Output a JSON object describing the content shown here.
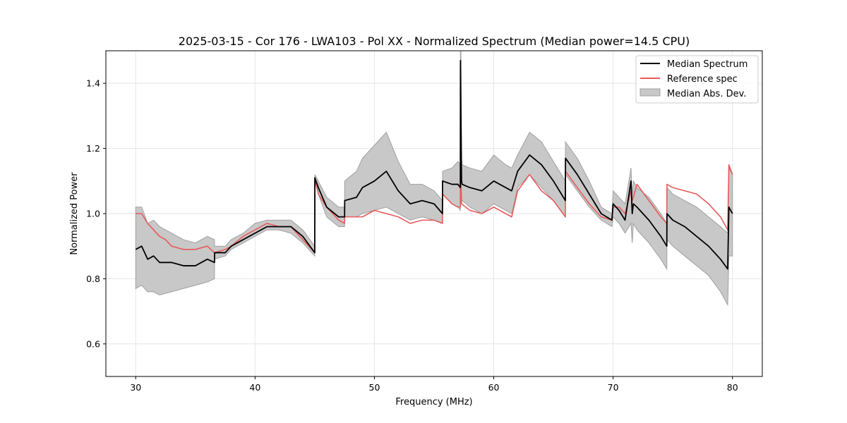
{
  "chart_data": {
    "type": "line",
    "title": "2025-03-15 - Cor 176 - LWA103 - Pol XX - Normalized Spectrum (Median power=14.5 CPU)",
    "xlabel": "Frequency (MHz)",
    "ylabel": "Normalized Power",
    "xlim": [
      27.5,
      82.5
    ],
    "ylim": [
      0.5,
      1.5
    ],
    "xticks": [
      30,
      40,
      50,
      60,
      70,
      80
    ],
    "yticks": [
      0.6,
      0.8,
      1.0,
      1.2,
      1.4
    ],
    "grid": true,
    "legend_position": "top-right",
    "legend": [
      "Median Spectrum",
      "Reference spec",
      "Median Abs. Dev."
    ],
    "colors": {
      "median": "#000000",
      "reference": "#e85a5a",
      "band_fill": "#c8c8c8",
      "band_edge": "#a0a0a0",
      "grid": "#e6e6e6"
    },
    "series": [
      {
        "name": "Median Spectrum",
        "x": [
          30.0,
          30.5,
          31.0,
          31.5,
          32.0,
          33.0,
          34.0,
          35.0,
          36.0,
          36.6,
          36.61,
          37.5,
          38.0,
          39.0,
          40.0,
          41.0,
          42.0,
          43.0,
          44.0,
          45.0,
          45.01,
          45.3,
          46.0,
          47.0,
          47.5,
          47.51,
          48.5,
          49.0,
          50.0,
          51.0,
          52.0,
          53.0,
          54.0,
          55.0,
          55.7,
          55.71,
          56.5,
          57.0,
          57.2,
          57.21,
          57.25,
          57.3,
          57.35,
          58.0,
          59.0,
          60.0,
          61.0,
          61.5,
          62.0,
          63.0,
          64.0,
          65.0,
          66.0,
          66.01,
          67.0,
          68.0,
          69.0,
          69.9,
          70.0,
          70.5,
          71.0,
          71.5,
          71.6,
          71.7,
          72.0,
          73.0,
          74.0,
          74.5,
          74.51,
          75.0,
          76.0,
          77.0,
          78.0,
          79.0,
          79.6,
          79.7,
          80.0
        ],
        "values": [
          0.89,
          0.9,
          0.86,
          0.87,
          0.85,
          0.85,
          0.84,
          0.84,
          0.86,
          0.85,
          0.88,
          0.88,
          0.9,
          0.92,
          0.94,
          0.96,
          0.96,
          0.96,
          0.93,
          0.88,
          1.11,
          1.08,
          1.02,
          0.99,
          0.99,
          1.04,
          1.05,
          1.08,
          1.1,
          1.13,
          1.07,
          1.03,
          1.04,
          1.03,
          1.0,
          1.1,
          1.09,
          1.09,
          1.08,
          1.47,
          1.3,
          1.1,
          1.09,
          1.08,
          1.07,
          1.1,
          1.08,
          1.07,
          1.13,
          1.18,
          1.15,
          1.1,
          1.04,
          1.17,
          1.12,
          1.06,
          1.0,
          0.98,
          1.03,
          1.01,
          0.98,
          1.1,
          1.0,
          1.03,
          1.02,
          0.98,
          0.93,
          0.9,
          1.0,
          0.98,
          0.96,
          0.93,
          0.9,
          0.86,
          0.83,
          1.02,
          1.0
        ]
      },
      {
        "name": "Reference spec",
        "x": [
          30.0,
          30.5,
          31.0,
          31.5,
          32.0,
          32.5,
          33.0,
          34.0,
          35.0,
          36.0,
          36.6,
          36.61,
          37.5,
          38.0,
          39.0,
          40.0,
          41.0,
          42.0,
          43.0,
          44.0,
          45.0,
          45.01,
          45.3,
          46.0,
          47.0,
          47.5,
          47.51,
          48.5,
          49.0,
          50.0,
          51.0,
          52.0,
          53.0,
          54.0,
          55.0,
          55.7,
          55.71,
          56.5,
          57.0,
          57.2,
          57.21,
          57.25,
          57.3,
          58.0,
          59.0,
          60.0,
          61.0,
          61.5,
          62.0,
          63.0,
          64.0,
          65.0,
          66.0,
          66.01,
          67.0,
          68.0,
          69.0,
          69.9,
          70.0,
          70.5,
          71.0,
          71.5,
          71.6,
          71.7,
          72.0,
          73.0,
          74.0,
          74.5,
          74.51,
          75.0,
          76.0,
          77.0,
          78.0,
          79.0,
          79.6,
          79.7,
          80.0
        ],
        "values": [
          1.0,
          1.0,
          0.97,
          0.95,
          0.93,
          0.92,
          0.9,
          0.89,
          0.89,
          0.9,
          0.88,
          0.88,
          0.89,
          0.9,
          0.93,
          0.95,
          0.97,
          0.96,
          0.96,
          0.92,
          0.88,
          1.11,
          1.06,
          1.02,
          0.98,
          0.97,
          0.99,
          0.99,
          0.99,
          1.01,
          1.0,
          0.99,
          0.97,
          0.98,
          0.98,
          0.97,
          1.06,
          1.03,
          1.02,
          1.02,
          1.22,
          1.1,
          1.03,
          1.01,
          1.0,
          1.02,
          1.0,
          0.99,
          1.07,
          1.12,
          1.07,
          1.04,
          0.99,
          1.13,
          1.08,
          1.03,
          0.99,
          0.98,
          1.02,
          1.02,
          1.0,
          1.07,
          1.04,
          1.05,
          1.09,
          1.04,
          0.99,
          0.97,
          1.09,
          1.08,
          1.07,
          1.06,
          1.03,
          0.99,
          0.95,
          1.15,
          1.12
        ]
      },
      {
        "name": "Median Abs. Dev.",
        "x": [
          30.0,
          30.5,
          31.0,
          31.5,
          32.0,
          33.0,
          34.0,
          35.0,
          36.0,
          36.6,
          36.61,
          37.5,
          38.0,
          39.0,
          40.0,
          41.0,
          42.0,
          43.0,
          44.0,
          45.0,
          45.01,
          45.3,
          46.0,
          47.0,
          47.5,
          47.51,
          48.5,
          49.0,
          50.0,
          51.0,
          52.0,
          53.0,
          54.0,
          55.0,
          55.7,
          55.71,
          56.5,
          57.0,
          57.2,
          57.21,
          57.25,
          57.3,
          57.35,
          58.0,
          59.0,
          60.0,
          61.0,
          61.5,
          62.0,
          63.0,
          64.0,
          65.0,
          66.0,
          66.01,
          67.0,
          68.0,
          69.0,
          69.9,
          70.0,
          70.5,
          71.0,
          71.5,
          71.6,
          71.7,
          72.0,
          73.0,
          74.0,
          74.5,
          74.51,
          75.0,
          76.0,
          77.0,
          78.0,
          79.0,
          79.6,
          79.7,
          80.0
        ],
        "lower": [
          0.77,
          0.78,
          0.76,
          0.76,
          0.75,
          0.76,
          0.77,
          0.78,
          0.79,
          0.8,
          0.86,
          0.87,
          0.89,
          0.91,
          0.93,
          0.95,
          0.95,
          0.94,
          0.91,
          0.87,
          1.1,
          1.06,
          0.99,
          0.96,
          0.96,
          0.99,
          0.99,
          1.0,
          1.01,
          1.02,
          1.0,
          0.98,
          0.99,
          0.98,
          0.97,
          1.06,
          1.03,
          1.02,
          1.01,
          1.1,
          1.1,
          1.04,
          1.04,
          1.02,
          1.0,
          1.03,
          1.01,
          1.0,
          1.08,
          1.12,
          1.08,
          1.04,
          0.99,
          1.12,
          1.07,
          1.02,
          0.98,
          0.96,
          0.99,
          0.97,
          0.94,
          0.97,
          0.91,
          0.97,
          0.95,
          0.91,
          0.86,
          0.83,
          0.92,
          0.9,
          0.87,
          0.84,
          0.81,
          0.76,
          0.72,
          0.87,
          0.87
        ],
        "upper": [
          1.02,
          1.02,
          0.97,
          0.98,
          0.96,
          0.94,
          0.92,
          0.91,
          0.93,
          0.92,
          0.9,
          0.9,
          0.92,
          0.94,
          0.97,
          0.98,
          0.98,
          0.98,
          0.95,
          0.9,
          1.12,
          1.1,
          1.05,
          1.02,
          1.02,
          1.1,
          1.13,
          1.17,
          1.21,
          1.25,
          1.16,
          1.09,
          1.09,
          1.07,
          1.04,
          1.13,
          1.14,
          1.16,
          1.15,
          1.5,
          1.5,
          1.17,
          1.15,
          1.14,
          1.13,
          1.18,
          1.15,
          1.14,
          1.18,
          1.25,
          1.22,
          1.16,
          1.1,
          1.22,
          1.17,
          1.1,
          1.02,
          1.0,
          1.07,
          1.05,
          1.03,
          1.14,
          1.05,
          1.1,
          1.08,
          1.05,
          1.0,
          0.97,
          1.08,
          1.06,
          1.04,
          1.02,
          0.99,
          0.96,
          0.94,
          1.14,
          1.12
        ]
      }
    ]
  }
}
